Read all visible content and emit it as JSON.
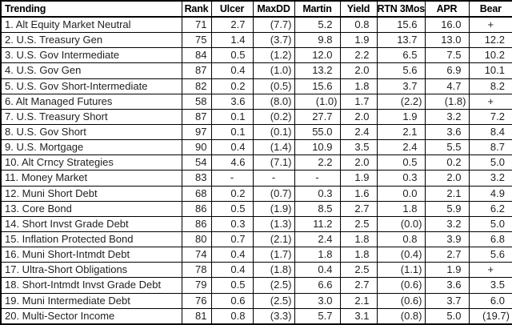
{
  "chart_data": {
    "type": "table",
    "title": "Trending",
    "columns": [
      "Trending",
      "Rank",
      "Ulcer",
      "MaxDD",
      "Martin",
      "Yield",
      "RTN 3Mos",
      "APR",
      "Bear"
    ],
    "rows": [
      [
        "1. Alt Equity Market Neutral",
        "71",
        "2.7",
        "(7.7)",
        "5.2",
        "0.8",
        "15.6",
        "16.0",
        "+"
      ],
      [
        "2. U.S. Treasury Gen",
        "75",
        "1.4",
        "(3.7)",
        "9.8",
        "1.9",
        "13.7",
        "13.0",
        "12.2"
      ],
      [
        "3. U.S. Gov Intermediate",
        "84",
        "0.5",
        "(1.2)",
        "12.0",
        "2.2",
        "6.5",
        "7.5",
        "10.2"
      ],
      [
        "4. U.S. Gov Gen",
        "87",
        "0.4",
        "(1.0)",
        "13.2",
        "2.0",
        "5.6",
        "6.9",
        "10.1"
      ],
      [
        "5. U.S. Gov Short-Intermediate",
        "82",
        "0.2",
        "(0.5)",
        "15.6",
        "1.8",
        "3.7",
        "4.7",
        "8.2"
      ],
      [
        "6. Alt Managed Futures",
        "58",
        "3.6",
        "(8.0)",
        "(1.0)",
        "1.7",
        "(2.2)",
        "(1.8)",
        "+"
      ],
      [
        "7. U.S. Treasury Short",
        "87",
        "0.1",
        "(0.2)",
        "27.7",
        "2.0",
        "1.9",
        "3.2",
        "7.2"
      ],
      [
        "8. U.S. Gov Short",
        "97",
        "0.1",
        "(0.1)",
        "55.0",
        "2.4",
        "2.1",
        "3.6",
        "8.4"
      ],
      [
        "9. U.S. Mortgage",
        "90",
        "0.4",
        "(1.4)",
        "10.9",
        "3.5",
        "2.4",
        "5.5",
        "8.7"
      ],
      [
        "10. Alt Crncy Strategies",
        "54",
        "4.6",
        "(7.1)",
        "2.2",
        "2.0",
        "0.5",
        "0.2",
        "5.0"
      ],
      [
        "11. Money Market",
        "83",
        "-",
        "-",
        "-",
        "1.9",
        "0.3",
        "2.0",
        "3.2"
      ],
      [
        "12. Muni Short Debt",
        "68",
        "0.2",
        "(0.7)",
        "0.3",
        "1.6",
        "0.0",
        "2.1",
        "4.9"
      ],
      [
        "13. Core Bond",
        "86",
        "0.5",
        "(1.9)",
        "8.5",
        "2.7",
        "1.8",
        "5.9",
        "6.2"
      ],
      [
        "14. Short Invst Grade Debt",
        "86",
        "0.3",
        "(1.3)",
        "11.2",
        "2.5",
        "(0.0)",
        "3.2",
        "5.0"
      ],
      [
        "15. Inflation Protected Bond",
        "80",
        "0.7",
        "(2.1)",
        "2.4",
        "1.8",
        "0.8",
        "3.9",
        "6.8"
      ],
      [
        "16. Muni Short-Intmdt Debt",
        "74",
        "0.4",
        "(1.7)",
        "1.8",
        "1.8",
        "(0.4)",
        "2.7",
        "5.6"
      ],
      [
        "17. Ultra-Short Obligations",
        "78",
        "0.4",
        "(1.8)",
        "0.4",
        "2.5",
        "(1.1)",
        "1.9",
        "+"
      ],
      [
        "18. Short-Intmdt Invst Grade Debt",
        "79",
        "0.5",
        "(2.5)",
        "6.6",
        "2.7",
        "(0.6)",
        "3.6",
        "3.5"
      ],
      [
        "19. Muni Intermediate Debt",
        "76",
        "0.6",
        "(2.5)",
        "3.0",
        "2.1",
        "(0.6)",
        "3.7",
        "6.0"
      ],
      [
        "20. Multi-Sector Income",
        "81",
        "0.8",
        "(3.3)",
        "5.7",
        "3.1",
        "(0.8)",
        "5.0",
        "(19.7)"
      ]
    ],
    "layout_hints": {
      "negative_format": "parentheses",
      "missing_value": "-",
      "special_value": "+",
      "header_align": "center",
      "first_column_align": "left",
      "number_align": "right",
      "grid": "on"
    },
    "colors": {
      "border": "#000000",
      "text": "#1f1f1f",
      "header_text": "#000000",
      "background": "#ffffff"
    }
  }
}
